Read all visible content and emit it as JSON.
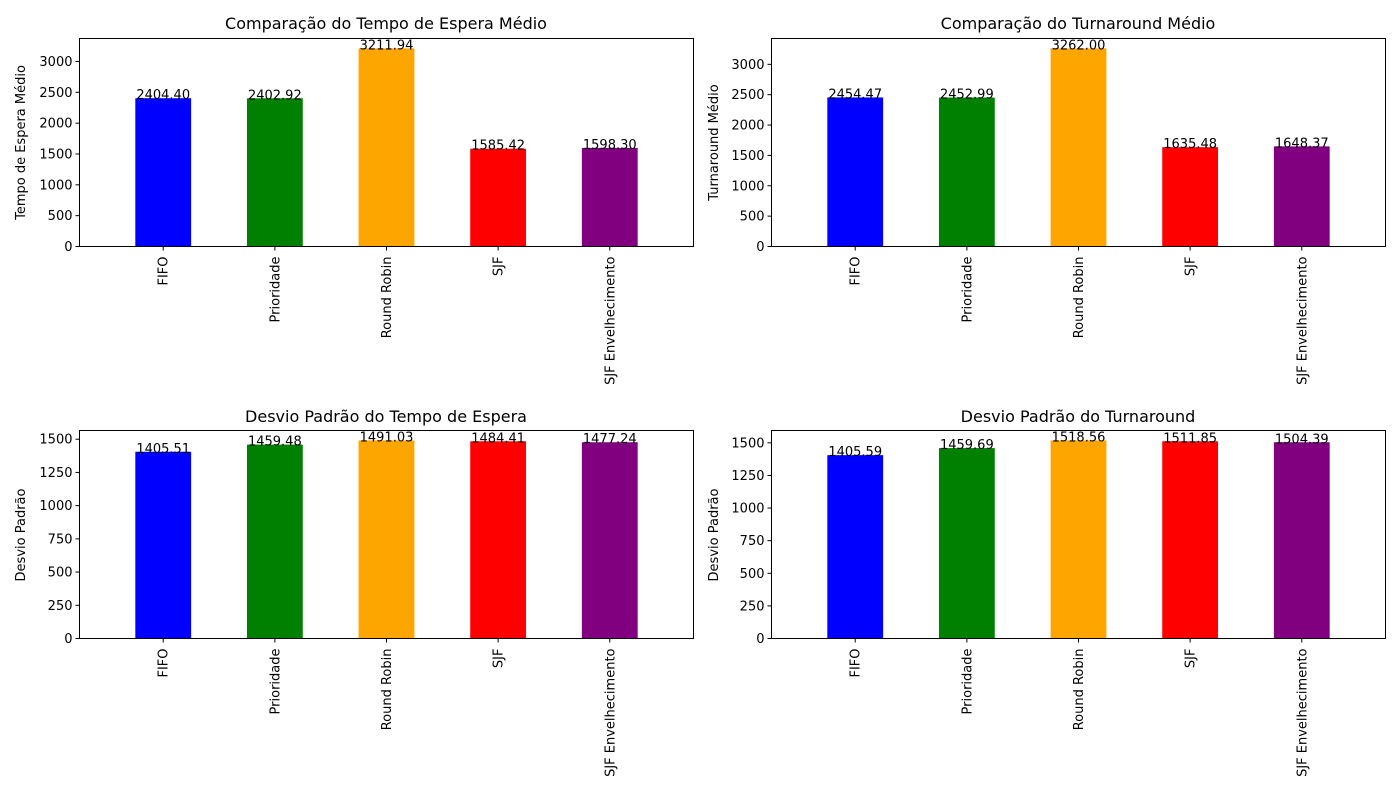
{
  "chart_data": [
    {
      "type": "bar",
      "title": "Comparação do Tempo de Espera Médio",
      "xlabel": "",
      "ylabel": "Tempo de Espera Médio",
      "categories": [
        "FIFO",
        "Prioridade",
        "Round Robin",
        "SJF",
        "SJF Envelhecimento"
      ],
      "values": [
        2404.4,
        2402.92,
        3211.94,
        1585.42,
        1598.3
      ],
      "value_labels": [
        "2404.40",
        "2402.92",
        "3211.94",
        "1585.42",
        "1598.30"
      ],
      "colors": [
        "#0000ff",
        "#008000",
        "#ffa500",
        "#ff0000",
        "#800080"
      ],
      "ylim": [
        0,
        3372.5
      ],
      "yticks": [
        0,
        500,
        1000,
        1500,
        2000,
        2500,
        3000
      ],
      "ytick_labels": [
        "0",
        "500",
        "1000",
        "1500",
        "2000",
        "2500",
        "3000"
      ],
      "grid": false,
      "legend": "none"
    },
    {
      "type": "bar",
      "title": "Comparação do Turnaround Médio",
      "xlabel": "",
      "ylabel": "Turnaround Médio",
      "categories": [
        "FIFO",
        "Prioridade",
        "Round Robin",
        "SJF",
        "SJF Envelhecimento"
      ],
      "values": [
        2454.47,
        2452.99,
        3262.0,
        1635.48,
        1648.37
      ],
      "value_labels": [
        "2454.47",
        "2452.99",
        "3262.00",
        "1635.48",
        "1648.37"
      ],
      "colors": [
        "#0000ff",
        "#008000",
        "#ffa500",
        "#ff0000",
        "#800080"
      ],
      "ylim": [
        0,
        3425.1
      ],
      "yticks": [
        0,
        500,
        1000,
        1500,
        2000,
        2500,
        3000
      ],
      "ytick_labels": [
        "0",
        "500",
        "1000",
        "1500",
        "2000",
        "2500",
        "3000"
      ],
      "grid": false,
      "legend": "none"
    },
    {
      "type": "bar",
      "title": "Desvio Padrão do Tempo de Espera",
      "xlabel": "",
      "ylabel": "Desvio Padrão",
      "categories": [
        "FIFO",
        "Prioridade",
        "Round Robin",
        "SJF",
        "SJF Envelhecimento"
      ],
      "values": [
        1405.51,
        1459.48,
        1491.03,
        1484.41,
        1477.24
      ],
      "value_labels": [
        "1405.51",
        "1459.48",
        "1491.03",
        "1484.41",
        "1477.24"
      ],
      "colors": [
        "#0000ff",
        "#008000",
        "#ffa500",
        "#ff0000",
        "#800080"
      ],
      "ylim": [
        0,
        1565.6
      ],
      "yticks": [
        0,
        250,
        500,
        750,
        1000,
        1250,
        1500
      ],
      "ytick_labels": [
        "0",
        "250",
        "500",
        "750",
        "1000",
        "1250",
        "1500"
      ],
      "grid": false,
      "legend": "none"
    },
    {
      "type": "bar",
      "title": "Desvio Padrão do Turnaround",
      "xlabel": "",
      "ylabel": "Desvio Padrão",
      "categories": [
        "FIFO",
        "Prioridade",
        "Round Robin",
        "SJF",
        "SJF Envelhecimento"
      ],
      "values": [
        1405.59,
        1459.69,
        1518.56,
        1511.85,
        1504.39
      ],
      "value_labels": [
        "1405.59",
        "1459.69",
        "1518.56",
        "1511.85",
        "1504.39"
      ],
      "colors": [
        "#0000ff",
        "#008000",
        "#ffa500",
        "#ff0000",
        "#800080"
      ],
      "ylim": [
        0,
        1594.5
      ],
      "yticks": [
        0,
        250,
        500,
        750,
        1000,
        1250,
        1500
      ],
      "ytick_labels": [
        "0",
        "250",
        "500",
        "750",
        "1000",
        "1250",
        "1500"
      ],
      "grid": false,
      "legend": "none"
    }
  ]
}
